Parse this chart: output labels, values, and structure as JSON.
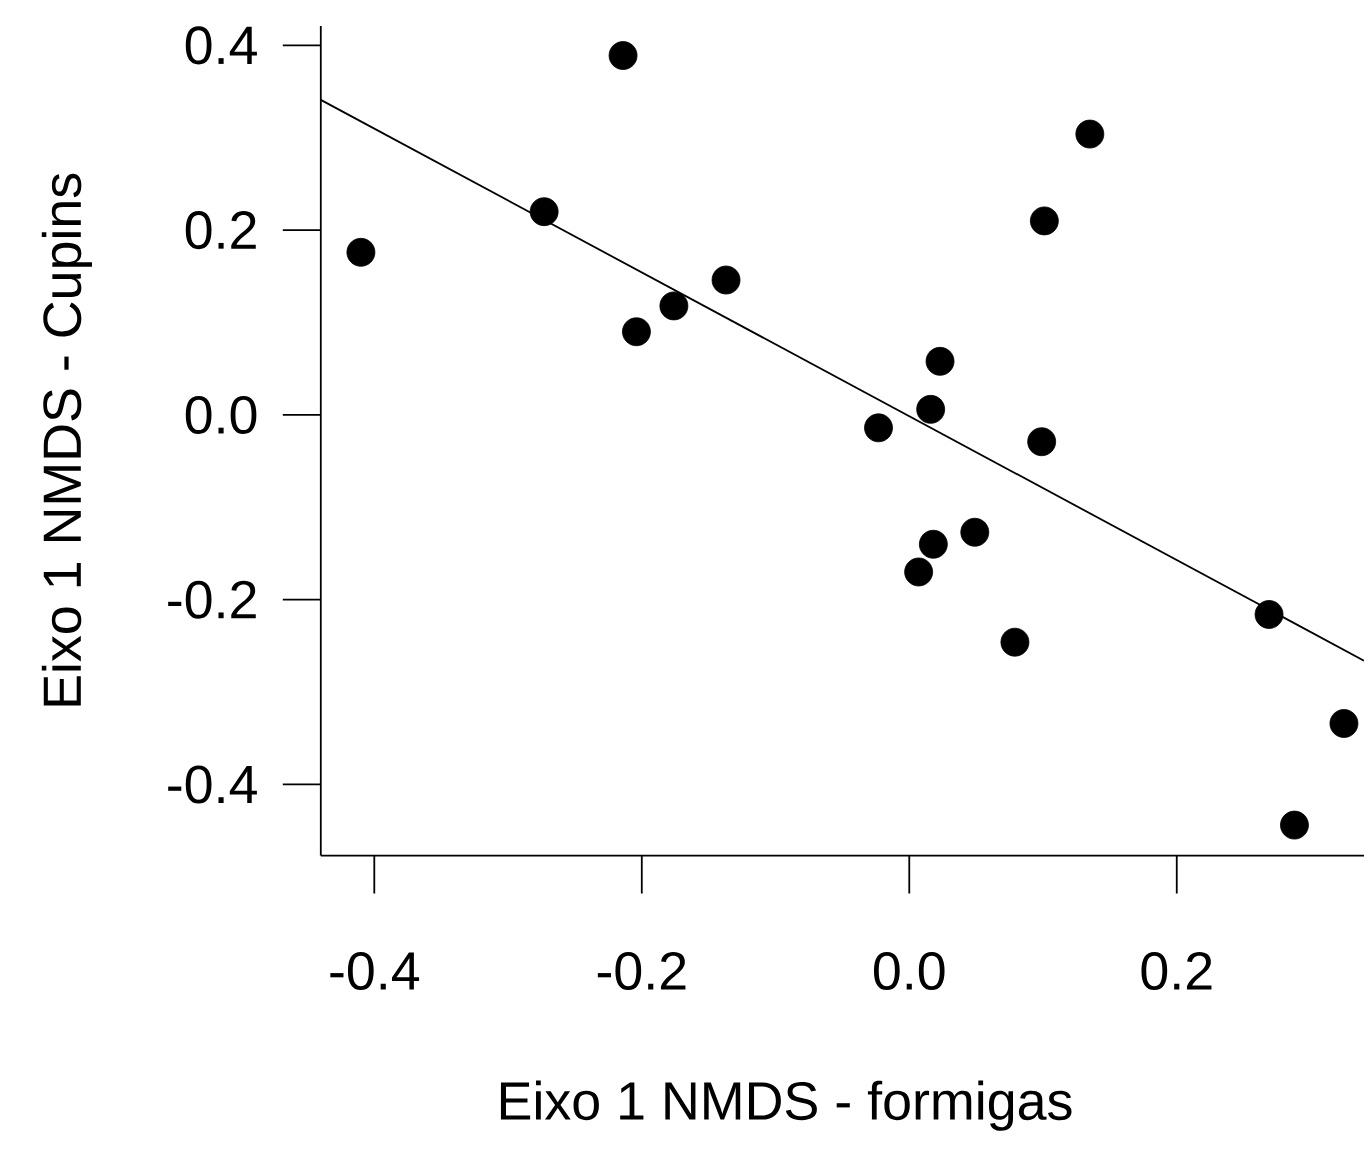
{
  "chart_data": {
    "type": "scatter",
    "xlabel": "Eixo 1 NMDS - formigas",
    "ylabel": "Eixo 1 NMDS - Cupins",
    "xlim": [
      -0.44,
      0.34
    ],
    "ylim": [
      -0.477,
      0.421
    ],
    "xticks": [
      {
        "value": -0.4,
        "label": "-0.4"
      },
      {
        "value": -0.2,
        "label": "-0.2"
      },
      {
        "value": 0,
        "label": "0.0"
      },
      {
        "value": 0.2,
        "label": "0.2"
      }
    ],
    "yticks": [
      {
        "value": -0.4,
        "label": "-0.4"
      },
      {
        "value": -0.2,
        "label": "-0.2"
      },
      {
        "value": 0,
        "label": "0.0"
      },
      {
        "value": 0.2,
        "label": "0.2"
      },
      {
        "value": 0.4,
        "label": "0.4"
      }
    ],
    "marker": "circle",
    "series": [
      {
        "color": "#000000",
        "x": [
          -0.41,
          -0.273,
          -0.214,
          -0.204,
          -0.176,
          -0.137,
          -0.023,
          0.016,
          0.023,
          0.018,
          0.007,
          0.049,
          0.079,
          0.099,
          0.101,
          0.135,
          0.269,
          0.288,
          0.325
        ],
        "values": [
          0.176,
          0.22,
          0.389,
          0.09,
          0.118,
          0.146,
          -0.014,
          0.006,
          0.058,
          -0.14,
          -0.17,
          -0.127,
          -0.246,
          -0.029,
          0.21,
          0.304,
          -0.216,
          -0.444,
          -0.334
        ]
      },
      {
        "type": "line",
        "marker": "none",
        "color": "#000000",
        "x": [
          -0.44,
          0.34
        ],
        "values": [
          0.341,
          -0.266
        ]
      }
    ]
  }
}
